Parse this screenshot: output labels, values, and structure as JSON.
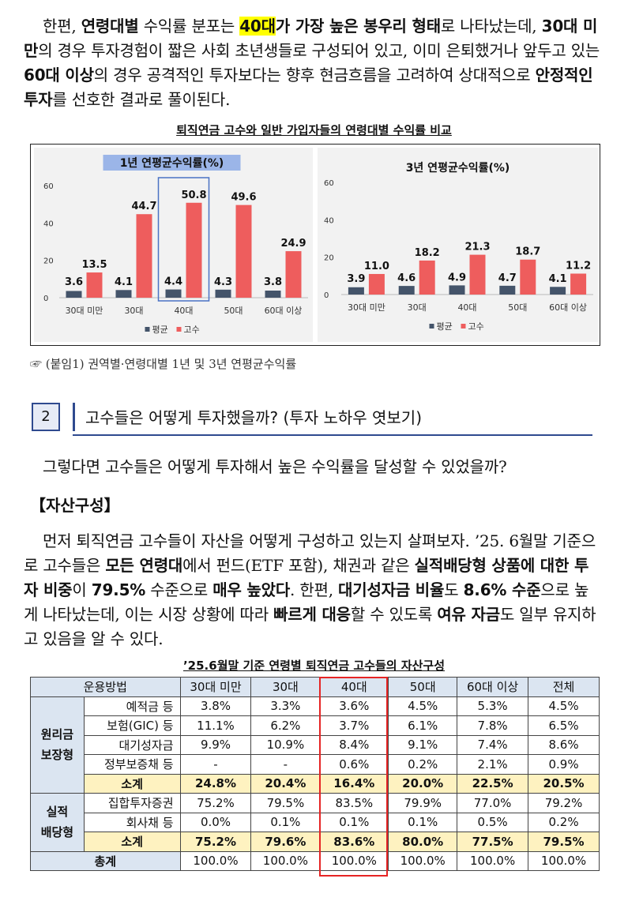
{
  "intro": {
    "t1": "한편, ",
    "b1": "연령대별",
    "t2": " 수익률 분포는 ",
    "b2_hl": "40대",
    "b3": "가 가장 높은 봉우리 형태",
    "t3": "로 나타났는데, ",
    "b4": "30대 미만",
    "t4": "의 경우 투자경험이 짧은 사회 초년생들로 구성되어 있고, 이미 은퇴했거나 앞두고 있는 ",
    "b5": "60대 이상",
    "t5": "의 경우 공격적인 투자보다는 향후 현금흐름을 고려하여 상대적으로 ",
    "b6": "안정적인 투자",
    "t6": "를 선호한 결과로 풀이된다."
  },
  "figure_title": "퇴직연금 고수와 일반 가입자들의 연령대별 수익률 비교",
  "chart_data": [
    {
      "type": "bar",
      "title": "1년 연평균수익률(%)",
      "categories": [
        "30대 미만",
        "30대",
        "40대",
        "50대",
        "60대 이상"
      ],
      "series": [
        {
          "name": "평균",
          "values": [
            3.6,
            4.1,
            4.4,
            4.3,
            3.8
          ],
          "color": "#44546a"
        },
        {
          "name": "고수",
          "values": [
            13.5,
            44.7,
            50.8,
            49.6,
            24.9
          ],
          "color": "#ee5d5d"
        }
      ],
      "yticks": [
        0,
        20,
        40,
        60
      ],
      "ylim": [
        0,
        60
      ],
      "highlight_category": "40대",
      "title_highlight": "#9bb5e8",
      "highlight_box": "#4a72c4"
    },
    {
      "type": "bar",
      "title": "3년 연평균수익률(%)",
      "categories": [
        "30대 미만",
        "30대",
        "40대",
        "50대",
        "60대 이상"
      ],
      "series": [
        {
          "name": "평균",
          "values": [
            3.9,
            4.6,
            4.9,
            4.7,
            4.1
          ],
          "color": "#44546a"
        },
        {
          "name": "고수",
          "values": [
            11.0,
            18.2,
            21.3,
            18.7,
            11.2
          ],
          "color": "#ee5d5d"
        }
      ],
      "yticks": [
        0,
        20,
        40,
        60
      ],
      "ylim": [
        0,
        60
      ]
    }
  ],
  "note": "☞ (붙임1) 권역별·연령대별 1년 및 3년 연평균수익률",
  "section": {
    "number": "2",
    "title": "고수들은 어떻게 투자했을까? (투자 노하우 엿보기)"
  },
  "question": "그렇다면 고수들은 어떻게 투자해서 높은 수익률을 달성할 수 있었을까?",
  "subheading": "【자산구성】",
  "body": {
    "t1": "먼저 퇴직연금 고수들이 자산을 어떻게 구성하고 있는지 살펴보자. ’25. 6월말 기준으로 고수들은 ",
    "b1": "모든 연령대",
    "t2": "에서 펀드(ETF 포함), 채권과 같은 ",
    "b2": "실적배당형 상품에 대한 투자 비중",
    "t3": "이 ",
    "b3": "79.5%",
    "t4": " 수준으로 ",
    "b4": "매우 높았다",
    "t5": ". 한편, ",
    "b5": "대기성자금 비율",
    "t6": "도 ",
    "b6": "8.6% 수준",
    "t7": "으로 높게 나타났는데, 이는 시장 상황에 따라 ",
    "b7": "빠르게 대응",
    "t8": "할 수 있도록 ",
    "b8": "여유 자금",
    "t9": "도 일부 유지하고 있음을 알 수 있다."
  },
  "table": {
    "title": "’25.6월말 기준 연령별 퇴직연금 고수들의 자산구성",
    "headers": [
      "운용방법",
      "30대 미만",
      "30대",
      "40대",
      "50대",
      "60대 이상",
      "전체"
    ],
    "group1": "원리금\n보장형",
    "group1_rows": [
      {
        "label": "예적금 등",
        "values": [
          "3.8%",
          "3.3%",
          "3.6%",
          "4.5%",
          "5.3%",
          "4.5%"
        ]
      },
      {
        "label": "보험(GIC) 등",
        "values": [
          "11.1%",
          "6.2%",
          "3.7%",
          "6.1%",
          "7.8%",
          "6.5%"
        ]
      },
      {
        "label": "대기성자금",
        "values": [
          "9.9%",
          "10.9%",
          "8.4%",
          "9.1%",
          "7.4%",
          "8.6%"
        ]
      },
      {
        "label": "정부보증채 등",
        "values": [
          "-",
          "-",
          "0.6%",
          "0.2%",
          "2.1%",
          "0.9%"
        ]
      }
    ],
    "group1_subtotal": {
      "label": "소계",
      "values": [
        "24.8%",
        "20.4%",
        "16.4%",
        "20.0%",
        "22.5%",
        "20.5%"
      ]
    },
    "group2": "실적\n배당형",
    "group2_rows": [
      {
        "label": "집합투자증권",
        "values": [
          "75.2%",
          "79.5%",
          "83.5%",
          "79.9%",
          "77.0%",
          "79.2%"
        ]
      },
      {
        "label": "회사채 등",
        "values": [
          "0.0%",
          "0.1%",
          "0.1%",
          "0.1%",
          "0.5%",
          "0.2%"
        ]
      }
    ],
    "group2_subtotal": {
      "label": "소계",
      "values": [
        "75.2%",
        "79.6%",
        "83.6%",
        "80.0%",
        "77.5%",
        "79.5%"
      ]
    },
    "total": {
      "label": "총계",
      "values": [
        "100.0%",
        "100.0%",
        "100.0%",
        "100.0%",
        "100.0%",
        "100.0%"
      ]
    }
  }
}
